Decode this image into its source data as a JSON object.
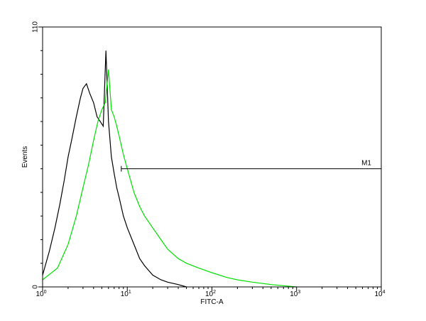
{
  "chart_data": {
    "type": "line",
    "title": "",
    "xlabel": "FITC-A",
    "ylabel": "Events",
    "x_scale": "log",
    "xlim": [
      1,
      10000
    ],
    "ylim": [
      0,
      110
    ],
    "grid": false,
    "legend": "none",
    "x_tick_labels": [
      {
        "value": 1,
        "base": "10",
        "exp": "0"
      },
      {
        "value": 10,
        "base": "10",
        "exp": "1"
      },
      {
        "value": 100,
        "base": "10",
        "exp": "2"
      },
      {
        "value": 1000,
        "base": "10",
        "exp": "3"
      },
      {
        "value": 10000,
        "base": "10",
        "exp": "4"
      }
    ],
    "y_tick_labels": [
      {
        "value": 0,
        "label": "0"
      },
      {
        "value": 110,
        "label": "110"
      }
    ],
    "series": [
      {
        "color": "#000000",
        "x": [
          1.0,
          1.2,
          1.4,
          1.6,
          1.8,
          2.0,
          2.2,
          2.5,
          2.8,
          3.0,
          3.3,
          3.6,
          4.0,
          4.4,
          4.8,
          5.2,
          5.6,
          6.0,
          6.5,
          7.0,
          7.5,
          8.0,
          9.0,
          10,
          12,
          14,
          16,
          20,
          25,
          30,
          40,
          50
        ],
        "y": [
          5,
          15,
          25,
          35,
          45,
          55,
          62,
          72,
          80,
          84,
          86,
          82,
          78,
          72,
          70,
          68,
          100,
          70,
          55,
          48,
          42,
          38,
          30,
          25,
          18,
          12,
          9,
          5,
          3,
          2,
          1,
          0
        ]
      },
      {
        "color": "#00e000",
        "x": [
          1.0,
          1.5,
          2.0,
          2.5,
          3.0,
          3.5,
          4.0,
          4.5,
          5.0,
          5.5,
          6.0,
          6.5,
          7.0,
          7.5,
          8.0,
          9.0,
          10,
          12,
          14,
          16,
          20,
          25,
          30,
          40,
          50,
          70,
          100,
          150,
          200,
          300,
          500,
          700,
          1000
        ],
        "y": [
          3,
          8,
          18,
          30,
          42,
          52,
          62,
          70,
          75,
          78,
          92,
          75,
          72,
          68,
          64,
          56,
          50,
          40,
          34,
          30,
          25,
          20,
          16,
          12,
          10,
          8,
          6,
          4,
          3,
          2,
          1,
          0.5,
          0
        ]
      }
    ],
    "markers": [
      {
        "label": "M1",
        "x_start": 8.5,
        "x_end": 10000,
        "y": 50
      }
    ]
  }
}
